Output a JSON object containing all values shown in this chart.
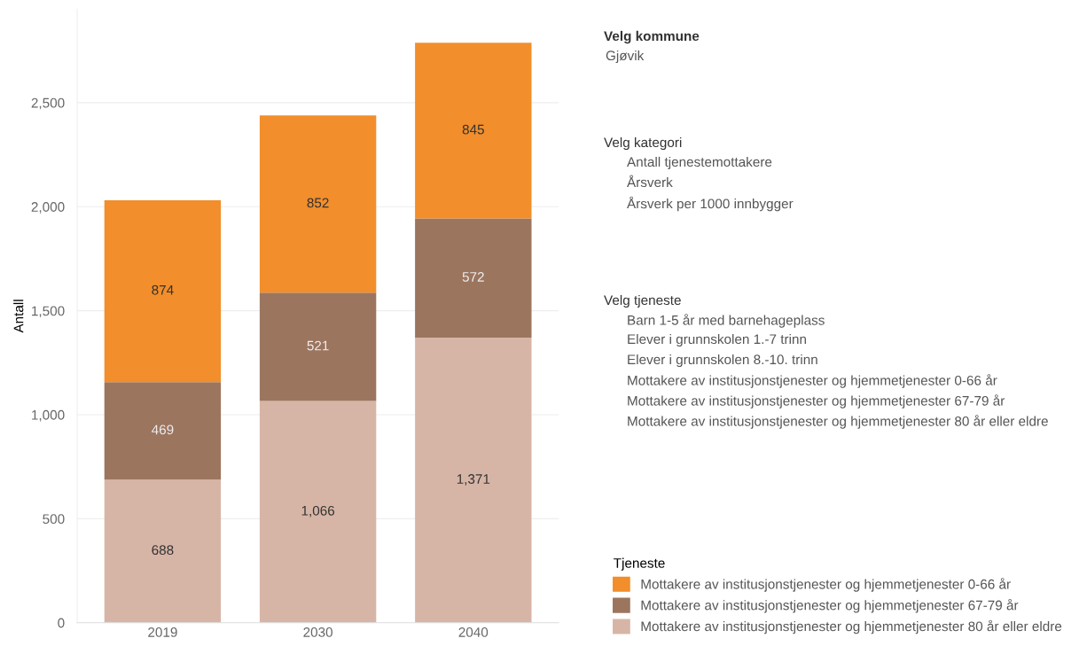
{
  "chart_data": {
    "type": "bar",
    "stacked": true,
    "ylabel": "Antall",
    "legend_title": "Tjeneste",
    "categories": [
      "2019",
      "2030",
      "2040"
    ],
    "series": [
      {
        "name": "Mottakere av institusjonstjenester og hjemmetjenester 80 år eller eldre",
        "color": "#d7b5a6",
        "values": [
          688,
          1066,
          1371
        ],
        "value_labels": [
          "688",
          "1,066",
          "1,371"
        ]
      },
      {
        "name": "Mottakere av institusjonstjenester og hjemmetjenester 67-79 år",
        "color": "#9c755f",
        "values": [
          469,
          521,
          572
        ],
        "value_labels": [
          "469",
          "521",
          "572"
        ]
      },
      {
        "name": "Mottakere av institusjonstjenester og hjemmetjenester 0-66 år",
        "color": "#f28e2b",
        "values": [
          874,
          852,
          845
        ],
        "value_labels": [
          "874",
          "852",
          "845"
        ]
      }
    ],
    "ylim": [
      0,
      2950
    ],
    "yticks": [
      {
        "value": 0,
        "label": "0"
      },
      {
        "value": 500,
        "label": "500"
      },
      {
        "value": 1000,
        "label": "1,000"
      },
      {
        "value": 1500,
        "label": "1,500"
      },
      {
        "value": 2000,
        "label": "2,000"
      },
      {
        "value": 2500,
        "label": "2,500"
      }
    ],
    "grid": "y",
    "legend": "bottom right",
    "annotations": [
      "Velg kommune",
      "Gjøvik",
      "Velg kategori",
      "Antall tjenestemottakere",
      "Årsverk",
      "Årsverk per 1000 innbygger",
      "Velg tjeneste",
      "Barn 1-5 år med barnehageplass",
      "Elever i grunnskolen 1.-7 trinn",
      "Elever i grunnskolen 8.-10. trinn",
      "Mottakere av institusjonstjenester og hjemmetjenester 0-66 år",
      "Mottakere av institusjonstjenester og hjemmetjenester 67-79 år",
      "Mottakere av institusjonstjenester og hjemmetjenester 80 år eller eldre"
    ]
  }
}
